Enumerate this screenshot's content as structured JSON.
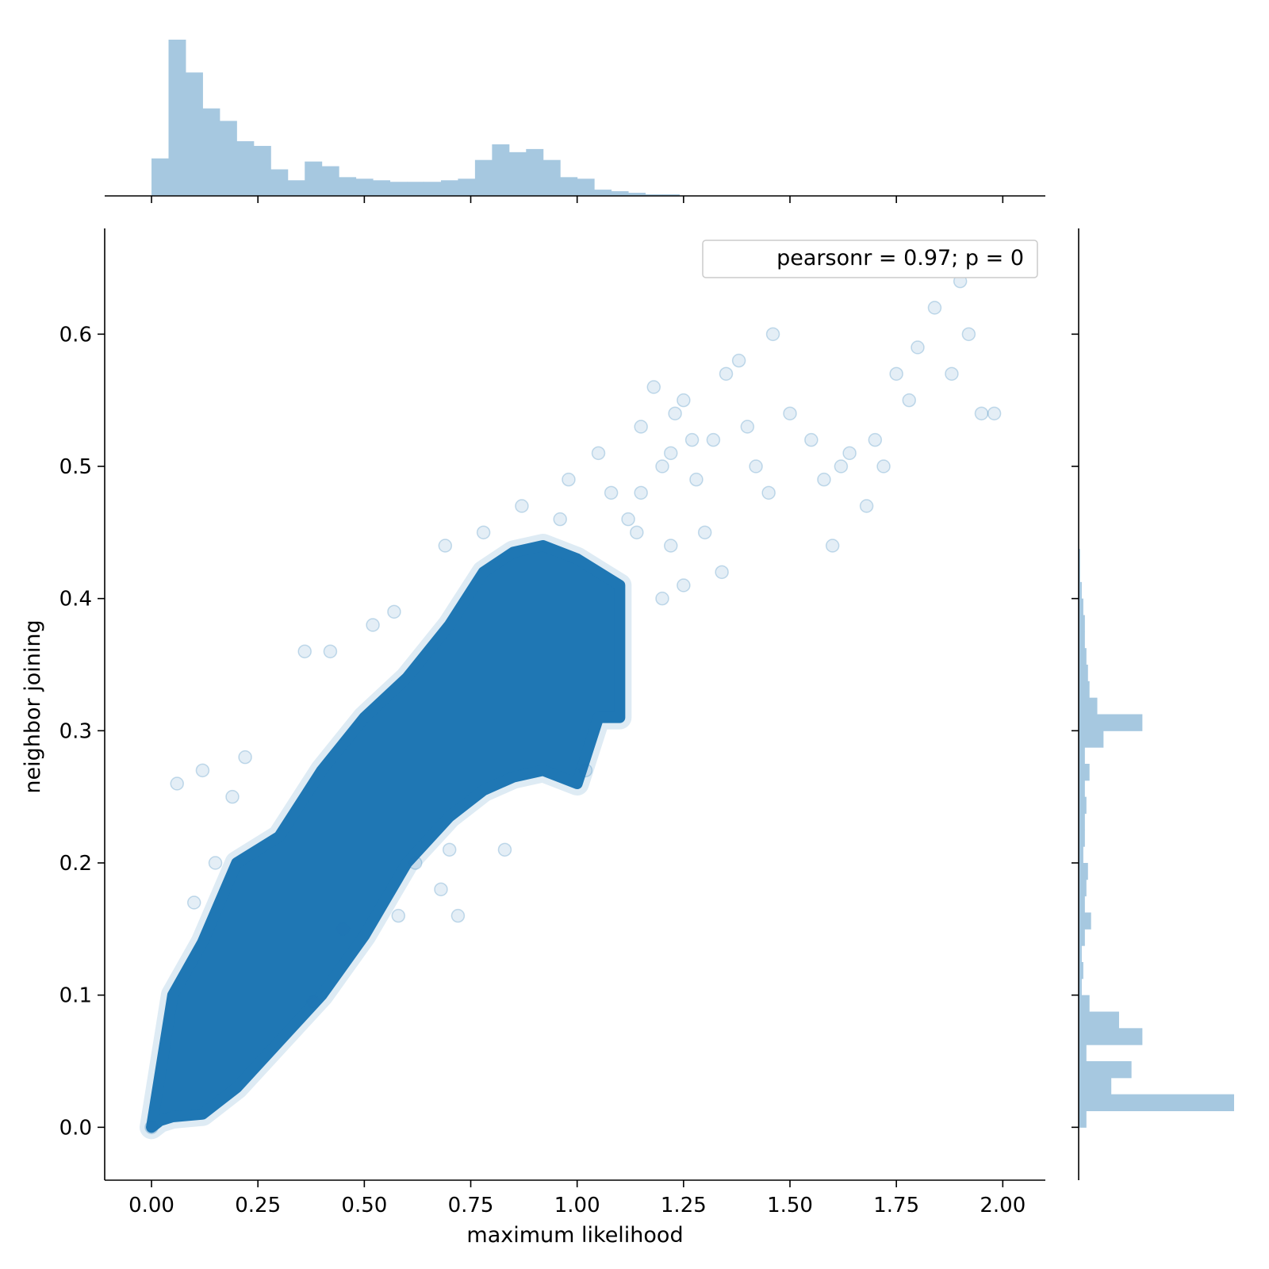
{
  "chart_data": {
    "type": "scatter",
    "title": "",
    "xlabel": "maximum likelihood",
    "ylabel": "neighbor joining",
    "xlim": [
      -0.11,
      2.1
    ],
    "ylim": [
      -0.04,
      0.68
    ],
    "xticks": [
      0.0,
      0.25,
      0.5,
      0.75,
      1.0,
      1.25,
      1.5,
      1.75,
      2.0
    ],
    "xtick_labels": [
      "0.00",
      "0.25",
      "0.50",
      "0.75",
      "1.00",
      "1.25",
      "1.50",
      "1.75",
      "2.00"
    ],
    "yticks": [
      0.0,
      0.1,
      0.2,
      0.3,
      0.4,
      0.5,
      0.6
    ],
    "ytick_labels": [
      "0.0",
      "0.1",
      "0.2",
      "0.3",
      "0.4",
      "0.5",
      "0.6"
    ],
    "legend": {
      "text": "pearsonr = 0.97; p = 0",
      "placement": "top-right"
    },
    "grid": false,
    "color": "#1f77b4",
    "marginal_color": "#a6c8e0",
    "point_alpha": 0.08,
    "dense_band": {
      "description": "densely overplotted core of points",
      "x": [
        0.0,
        0.02,
        0.05,
        0.12,
        0.2,
        0.3,
        0.4,
        0.5,
        0.6,
        0.7,
        0.78,
        0.85,
        0.92,
        1.0,
        1.05,
        1.1
      ],
      "y_low": [
        0.0,
        0.005,
        0.008,
        0.01,
        0.03,
        0.065,
        0.1,
        0.145,
        0.2,
        0.235,
        0.255,
        0.265,
        0.27,
        0.26,
        0.31,
        0.31
      ],
      "y_high": [
        0.0,
        0.04,
        0.1,
        0.14,
        0.2,
        0.22,
        0.27,
        0.31,
        0.34,
        0.38,
        0.42,
        0.435,
        0.44,
        0.43,
        0.42,
        0.41
      ]
    },
    "points": [
      {
        "x": 0.0,
        "y": 0.0
      },
      {
        "x": 0.06,
        "y": 0.26
      },
      {
        "x": 0.12,
        "y": 0.27
      },
      {
        "x": 0.22,
        "y": 0.28
      },
      {
        "x": 0.19,
        "y": 0.25
      },
      {
        "x": 0.36,
        "y": 0.36
      },
      {
        "x": 0.42,
        "y": 0.36
      },
      {
        "x": 0.52,
        "y": 0.38
      },
      {
        "x": 0.57,
        "y": 0.39
      },
      {
        "x": 0.69,
        "y": 0.44
      },
      {
        "x": 0.78,
        "y": 0.45
      },
      {
        "x": 0.87,
        "y": 0.47
      },
      {
        "x": 0.96,
        "y": 0.46
      },
      {
        "x": 0.98,
        "y": 0.49
      },
      {
        "x": 1.05,
        "y": 0.51
      },
      {
        "x": 1.08,
        "y": 0.48
      },
      {
        "x": 1.12,
        "y": 0.46
      },
      {
        "x": 1.14,
        "y": 0.45
      },
      {
        "x": 1.15,
        "y": 0.48
      },
      {
        "x": 1.2,
        "y": 0.5
      },
      {
        "x": 1.22,
        "y": 0.51
      },
      {
        "x": 1.23,
        "y": 0.54
      },
      {
        "x": 1.18,
        "y": 0.56
      },
      {
        "x": 1.25,
        "y": 0.55
      },
      {
        "x": 1.28,
        "y": 0.49
      },
      {
        "x": 1.3,
        "y": 0.45
      },
      {
        "x": 1.32,
        "y": 0.52
      },
      {
        "x": 1.35,
        "y": 0.57
      },
      {
        "x": 1.38,
        "y": 0.58
      },
      {
        "x": 1.4,
        "y": 0.53
      },
      {
        "x": 1.42,
        "y": 0.5
      },
      {
        "x": 1.46,
        "y": 0.6
      },
      {
        "x": 1.45,
        "y": 0.48
      },
      {
        "x": 1.5,
        "y": 0.54
      },
      {
        "x": 1.55,
        "y": 0.52
      },
      {
        "x": 1.58,
        "y": 0.49
      },
      {
        "x": 1.62,
        "y": 0.5
      },
      {
        "x": 1.64,
        "y": 0.51
      },
      {
        "x": 1.6,
        "y": 0.44
      },
      {
        "x": 1.68,
        "y": 0.47
      },
      {
        "x": 1.7,
        "y": 0.52
      },
      {
        "x": 1.72,
        "y": 0.5
      },
      {
        "x": 1.75,
        "y": 0.57
      },
      {
        "x": 1.78,
        "y": 0.55
      },
      {
        "x": 1.8,
        "y": 0.59
      },
      {
        "x": 1.84,
        "y": 0.62
      },
      {
        "x": 1.88,
        "y": 0.57
      },
      {
        "x": 1.9,
        "y": 0.64
      },
      {
        "x": 1.92,
        "y": 0.6
      },
      {
        "x": 1.95,
        "y": 0.54
      },
      {
        "x": 1.98,
        "y": 0.54
      },
      {
        "x": 1.25,
        "y": 0.41
      },
      {
        "x": 1.2,
        "y": 0.4
      },
      {
        "x": 0.7,
        "y": 0.21
      },
      {
        "x": 0.62,
        "y": 0.2
      },
      {
        "x": 0.68,
        "y": 0.18
      },
      {
        "x": 0.72,
        "y": 0.16
      },
      {
        "x": 0.58,
        "y": 0.16
      },
      {
        "x": 0.45,
        "y": 0.15
      },
      {
        "x": 0.38,
        "y": 0.095
      },
      {
        "x": 0.83,
        "y": 0.21
      },
      {
        "x": 1.02,
        "y": 0.27
      },
      {
        "x": 1.22,
        "y": 0.44
      },
      {
        "x": 1.15,
        "y": 0.53
      },
      {
        "x": 1.27,
        "y": 0.52
      },
      {
        "x": 1.34,
        "y": 0.42
      },
      {
        "x": 0.15,
        "y": 0.2
      },
      {
        "x": 0.1,
        "y": 0.17
      }
    ]
  },
  "marginal_x": {
    "bin_width": 0.04,
    "start": 0.0,
    "counts": [
      0.24,
      1.0,
      0.79,
      0.56,
      0.48,
      0.35,
      0.32,
      0.17,
      0.1,
      0.22,
      0.19,
      0.12,
      0.11,
      0.1,
      0.09,
      0.09,
      0.09,
      0.1,
      0.11,
      0.23,
      0.33,
      0.28,
      0.3,
      0.23,
      0.12,
      0.11,
      0.04,
      0.03,
      0.02,
      0.01,
      0.01,
      0.0
    ]
  },
  "marginal_y": {
    "bin_width": 0.0125,
    "start": 0.0,
    "counts": [
      0.05,
      1.0,
      0.21,
      0.34,
      0.05,
      0.41,
      0.26,
      0.07,
      0.02,
      0.03,
      0.02,
      0.04,
      0.08,
      0.04,
      0.05,
      0.06,
      0.03,
      0.04,
      0.04,
      0.05,
      0.04,
      0.07,
      0.04,
      0.16,
      0.41,
      0.12,
      0.07,
      0.06,
      0.05,
      0.04,
      0.04,
      0.03,
      0.02,
      0.01,
      0.01
    ]
  }
}
